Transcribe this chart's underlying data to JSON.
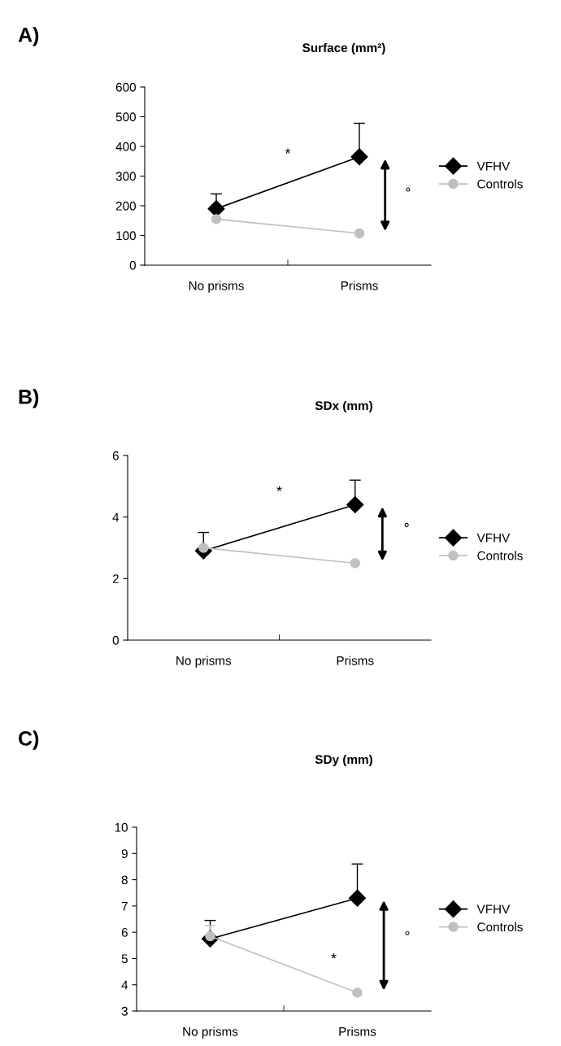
{
  "chart_data": [
    {
      "type": "line",
      "title": "Surface (mm²)",
      "categories": [
        "No prisms",
        "Prisms"
      ],
      "ylim": [
        0,
        600
      ],
      "yticks": [
        0,
        100,
        200,
        300,
        400,
        500,
        600
      ],
      "legend": "right",
      "grid": false,
      "series": [
        {
          "name": "VFHV",
          "color": "#000000",
          "marker": "diamond",
          "values": [
            190,
            365
          ],
          "errors": [
            [
              190,
              240
            ],
            [
              365,
              478
            ]
          ]
        },
        {
          "name": "Controls",
          "color": "#c0c0c0",
          "marker": "circle",
          "values": [
            155,
            107
          ]
        }
      ],
      "annotations": [
        "A)",
        "*",
        "°"
      ]
    },
    {
      "type": "line",
      "title": "SDx (mm)",
      "categories": [
        "No prisms",
        "Prisms"
      ],
      "ylim": [
        0,
        6
      ],
      "yticks": [
        0,
        2,
        4,
        6
      ],
      "legend": "right",
      "grid": false,
      "series": [
        {
          "name": "VFHV",
          "color": "#000000",
          "marker": "diamond",
          "values": [
            2.9,
            4.4
          ],
          "errors": [
            [
              2.9,
              3.5
            ],
            [
              4.4,
              5.2
            ]
          ]
        },
        {
          "name": "Controls",
          "color": "#c0c0c0",
          "marker": "circle",
          "values": [
            3.0,
            2.5
          ]
        }
      ],
      "annotations": [
        "B)",
        "*",
        "°"
      ]
    },
    {
      "type": "line",
      "title": "SDy (mm)",
      "categories": [
        "No prisms",
        "Prisms"
      ],
      "ylim": [
        3,
        10
      ],
      "yticks": [
        3,
        4,
        5,
        6,
        7,
        8,
        9,
        10
      ],
      "legend": "right",
      "grid": false,
      "series": [
        {
          "name": "VFHV",
          "color": "#000000",
          "marker": "diamond",
          "values": [
            5.75,
            7.3
          ],
          "errors": [
            [
              5.75,
              6.45
            ],
            [
              7.3,
              8.6
            ]
          ]
        },
        {
          "name": "Controls",
          "color": "#c0c0c0",
          "marker": "circle",
          "values": [
            5.85,
            3.7
          ],
          "errors": [
            [
              5.85,
              6.25
            ],
            null
          ]
        }
      ],
      "annotations": [
        "C)",
        "*",
        "°"
      ]
    }
  ]
}
